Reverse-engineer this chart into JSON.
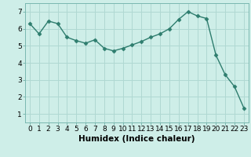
{
  "x": [
    0,
    1,
    2,
    3,
    4,
    5,
    6,
    7,
    8,
    9,
    10,
    11,
    12,
    13,
    14,
    15,
    16,
    17,
    18,
    19,
    20,
    21,
    22,
    23
  ],
  "y": [
    6.3,
    5.7,
    6.45,
    6.3,
    5.5,
    5.3,
    5.15,
    5.35,
    4.85,
    4.7,
    4.85,
    5.05,
    5.25,
    5.5,
    5.7,
    6.0,
    6.55,
    7.0,
    6.75,
    6.6,
    4.45,
    3.3,
    2.6,
    1.35
  ],
  "line_color": "#2e7d6e",
  "marker": "D",
  "markersize": 2.5,
  "linewidth": 1.0,
  "xlabel": "Humidex (Indice chaleur)",
  "xlim": [
    -0.5,
    23.5
  ],
  "ylim": [
    0.5,
    7.5
  ],
  "yticks": [
    1,
    2,
    3,
    4,
    5,
    6,
    7
  ],
  "xticks": [
    0,
    1,
    2,
    3,
    4,
    5,
    6,
    7,
    8,
    9,
    10,
    11,
    12,
    13,
    14,
    15,
    16,
    17,
    18,
    19,
    20,
    21,
    22,
    23
  ],
  "bg_color": "#ceeee8",
  "grid_color": "#b0d8d2",
  "xlabel_fontsize": 7.5,
  "tick_fontsize": 6.5
}
